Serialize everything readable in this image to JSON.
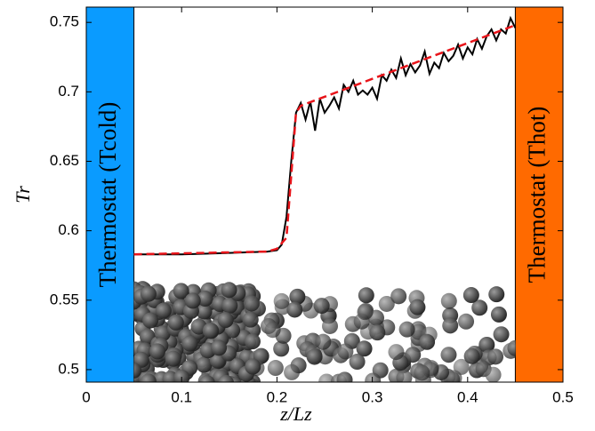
{
  "chart_data": {
    "type": "line",
    "xlabel": "z/Lz",
    "ylabel": "Tr",
    "xlim": [
      0,
      0.5
    ],
    "ylim": [
      0.491,
      0.761
    ],
    "xticks": [
      0,
      0.1,
      0.2,
      0.3,
      0.4,
      0.5
    ],
    "yticks": [
      0.5,
      0.55,
      0.6,
      0.65,
      0.7,
      0.75
    ],
    "regions": [
      {
        "label": "Thermostat (Tcold)",
        "xlim": [
          0,
          0.05
        ],
        "color": "#0a9bff"
      },
      {
        "label": "Thermostat (Thot)",
        "xlim": [
          0.45,
          0.5
        ],
        "color": "#ff6a00"
      }
    ],
    "series": [
      {
        "color": "#000000",
        "dash": false,
        "x": [
          0.05,
          0.1,
          0.15,
          0.19,
          0.2,
          0.205,
          0.21,
          0.215,
          0.22,
          0.225,
          0.23,
          0.235,
          0.24,
          0.245,
          0.25,
          0.255,
          0.26,
          0.265,
          0.27,
          0.275,
          0.28,
          0.285,
          0.29,
          0.295,
          0.3,
          0.305,
          0.31,
          0.315,
          0.32,
          0.325,
          0.33,
          0.335,
          0.34,
          0.345,
          0.35,
          0.355,
          0.36,
          0.365,
          0.37,
          0.375,
          0.38,
          0.385,
          0.39,
          0.395,
          0.4,
          0.405,
          0.41,
          0.415,
          0.42,
          0.425,
          0.43,
          0.435,
          0.44,
          0.445,
          0.45
        ],
        "values": [
          0.583,
          0.583,
          0.584,
          0.585,
          0.586,
          0.59,
          0.61,
          0.65,
          0.685,
          0.692,
          0.68,
          0.693,
          0.672,
          0.695,
          0.685,
          0.69,
          0.696,
          0.688,
          0.705,
          0.7,
          0.708,
          0.698,
          0.701,
          0.698,
          0.703,
          0.695,
          0.712,
          0.708,
          0.716,
          0.71,
          0.724,
          0.712,
          0.72,
          0.714,
          0.719,
          0.729,
          0.713,
          0.721,
          0.717,
          0.728,
          0.722,
          0.726,
          0.734,
          0.724,
          0.732,
          0.727,
          0.738,
          0.731,
          0.74,
          0.745,
          0.737,
          0.745,
          0.742,
          0.753,
          0.746
        ]
      },
      {
        "color": "#e8141a",
        "dash": true,
        "x": [
          0.05,
          0.19,
          0.2,
          0.21,
          0.215,
          0.22,
          0.225,
          0.45
        ],
        "values": [
          0.583,
          0.585,
          0.587,
          0.595,
          0.64,
          0.685,
          0.69,
          0.748
        ]
      }
    ]
  }
}
